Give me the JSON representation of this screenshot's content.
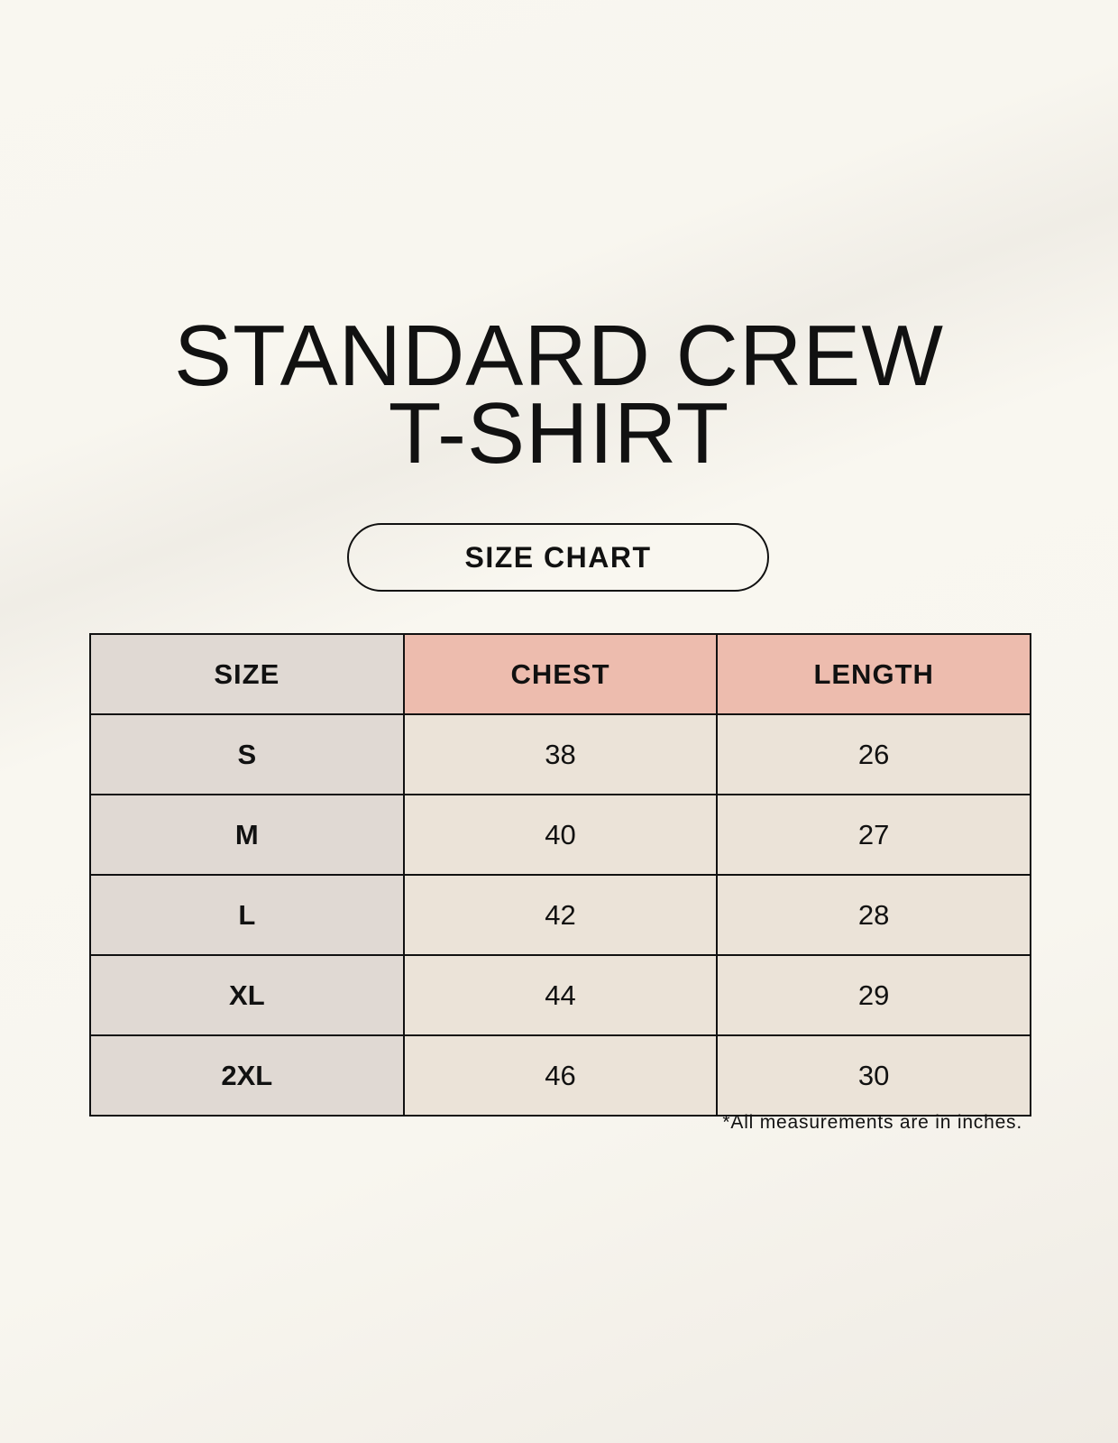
{
  "title_lines": [
    "STANDARD CREW",
    "T-SHIRT"
  ],
  "badge": "SIZE CHART",
  "table": {
    "headers": [
      "SIZE",
      "CHEST",
      "LENGTH"
    ],
    "rows": [
      [
        "S",
        "38",
        "26"
      ],
      [
        "M",
        "40",
        "27"
      ],
      [
        "L",
        "42",
        "28"
      ],
      [
        "XL",
        "44",
        "29"
      ],
      [
        "2XL",
        "46",
        "30"
      ]
    ]
  },
  "footnote": "*All measurements are in inches.",
  "colors": {
    "size_column": "#e0d9d3",
    "header_accent": "#edbcae",
    "value_cells": "#ebe3d8"
  }
}
